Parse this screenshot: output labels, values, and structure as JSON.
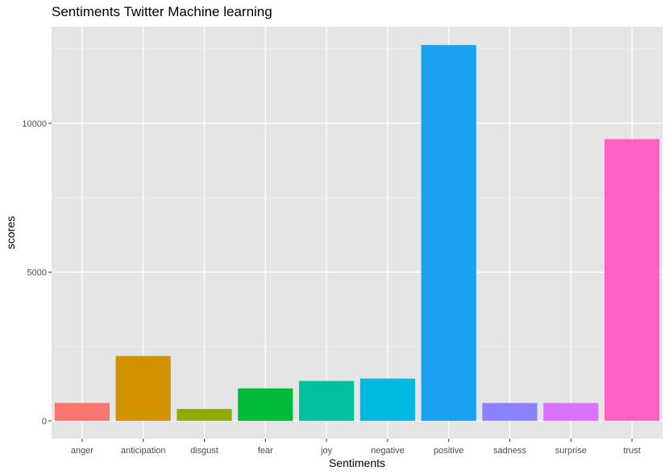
{
  "chart_data": {
    "type": "bar",
    "title": "Sentiments Twitter Machine learning",
    "xlabel": "Sentiments",
    "ylabel": "scores",
    "categories": [
      "anger",
      "anticipation",
      "disgust",
      "fear",
      "joy",
      "negative",
      "positive",
      "sadness",
      "surprise",
      "trust"
    ],
    "values": [
      600,
      2180,
      400,
      1090,
      1340,
      1420,
      12630,
      600,
      600,
      9470
    ],
    "colors": [
      "#F8766D",
      "#D39200",
      "#93AA00",
      "#00BA38",
      "#00C19F",
      "#00B9E3",
      "#1AA1F0",
      "#8B82FF",
      "#DB72FB",
      "#FF61C3"
    ],
    "y_ticks": [
      0,
      5000,
      10000
    ],
    "ylim": [
      -600,
      13250
    ],
    "grid": true,
    "legend": "none",
    "background": "#E5E5E5"
  }
}
